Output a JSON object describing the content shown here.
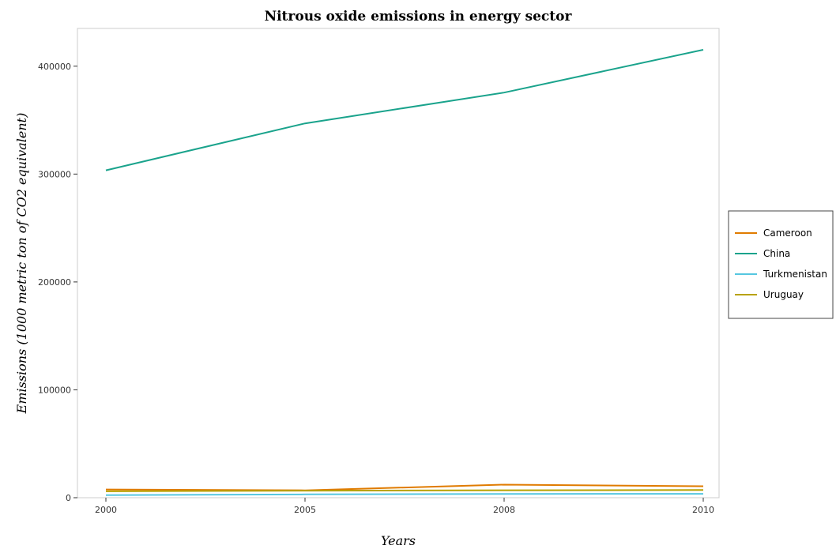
{
  "chart_data": {
    "type": "line",
    "title": "Nitrous oxide emissions in energy sector",
    "xlabel": "Years",
    "ylabel": "Emissions (1000 metric ton of CO2 equivalent)",
    "x": [
      "2000",
      "2005",
      "2008",
      "2010"
    ],
    "ylim": [
      0,
      435000
    ],
    "yticks": [
      0,
      100000,
      200000,
      300000,
      400000
    ],
    "ytick_labels": [
      "0",
      "100000",
      "200000",
      "300000",
      "400000"
    ],
    "grid": false,
    "legend_position": "right",
    "series": [
      {
        "name": "Cameroon",
        "color": "#e07b00",
        "values": [
          7600,
          6800,
          12100,
          10600
        ]
      },
      {
        "name": "China",
        "color": "#1aa38c",
        "values": [
          303500,
          347000,
          375500,
          415200
        ]
      },
      {
        "name": "Turkmenistan",
        "color": "#56c7e0",
        "values": [
          2400,
          3100,
          3500,
          3600
        ]
      },
      {
        "name": "Uruguay",
        "color": "#b8a200",
        "values": [
          5900,
          6500,
          6900,
          7100
        ]
      }
    ]
  }
}
